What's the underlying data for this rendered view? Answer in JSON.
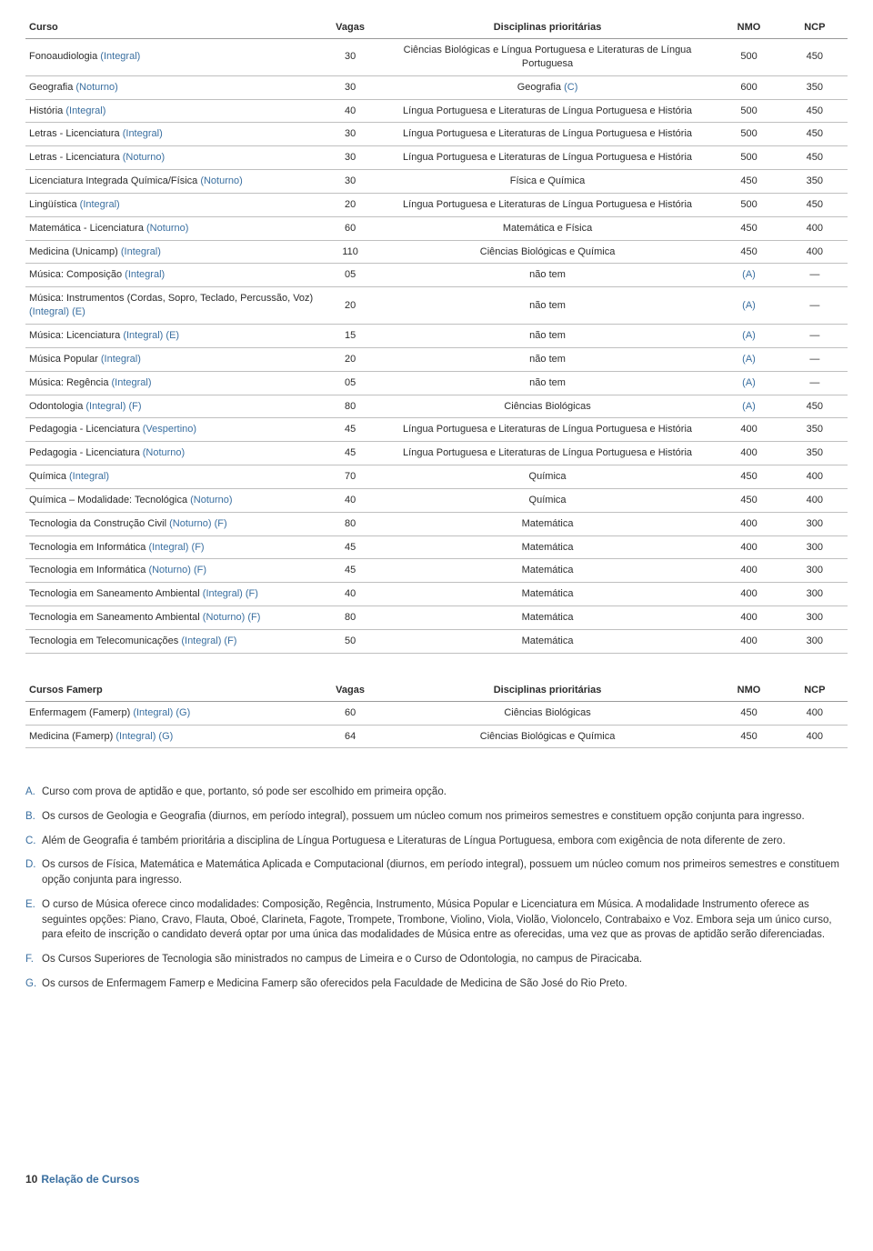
{
  "colors": {
    "modality": "#3a6fa0",
    "text": "#2c2c2c",
    "border": "#bfbfbf",
    "header_border": "#999999"
  },
  "fonts": {
    "body_size_pt": 11,
    "notes_size_pt": 11.5,
    "footer_size_pt": 12
  },
  "table1": {
    "headers": {
      "curso": "Curso",
      "vagas": "Vagas",
      "disc": "Disciplinas prioritárias",
      "nmo": "NMO",
      "ncp": "NCP"
    },
    "col_widths_pct": [
      36,
      7,
      41,
      8,
      8
    ],
    "rows": [
      {
        "curso": "Fonoaudiologia",
        "mod": "(Integral)",
        "vagas": "30",
        "disc": "Ciências Biológicas e Língua Portuguesa e Literaturas de Língua Portuguesa",
        "nmo": "500",
        "ncp": "450"
      },
      {
        "curso": "Geografia",
        "mod": "(Noturno)",
        "vagas": "30",
        "disc": "Geografia",
        "disc_suf": "(C)",
        "nmo": "600",
        "ncp": "350"
      },
      {
        "curso": "História",
        "mod": "(Integral)",
        "vagas": "40",
        "disc": "Língua Portuguesa e Literaturas de Língua Portuguesa e História",
        "nmo": "500",
        "ncp": "450"
      },
      {
        "curso": "Letras - Licenciatura",
        "mod": "(Integral)",
        "vagas": "30",
        "disc": "Língua Portuguesa e Literaturas de Língua Portuguesa e História",
        "nmo": "500",
        "ncp": "450"
      },
      {
        "curso": "Letras - Licenciatura",
        "mod": "(Noturno)",
        "vagas": "30",
        "disc": "Língua Portuguesa e Literaturas de Língua Portuguesa e História",
        "nmo": "500",
        "ncp": "450"
      },
      {
        "curso": "Licenciatura Integrada Química/Física",
        "mod": "(Noturno)",
        "vagas": "30",
        "disc": "Física e Química",
        "nmo": "450",
        "ncp": "350"
      },
      {
        "curso": "Lingüística",
        "mod": "(Integral)",
        "vagas": "20",
        "disc": "Língua Portuguesa e Literaturas de Língua Portuguesa e História",
        "nmo": "500",
        "ncp": "450"
      },
      {
        "curso": "Matemática - Licenciatura",
        "mod": "(Noturno)",
        "vagas": "60",
        "disc": "Matemática e Física",
        "nmo": "450",
        "ncp": "400"
      },
      {
        "curso": "Medicina (Unicamp)",
        "mod": "(Integral)",
        "vagas": "110",
        "disc": "Ciências Biológicas e Química",
        "nmo": "450",
        "ncp": "400"
      },
      {
        "curso": "Música: Composição",
        "mod": "(Integral)",
        "vagas": "05",
        "disc": "não tem",
        "nmo_mod": "(A)",
        "ncp": "—"
      },
      {
        "curso": "Música: Instrumentos (Cordas, Sopro, Teclado, Percussão, Voz)",
        "mod": "(Integral) (E)",
        "vagas": "20",
        "disc": "não tem",
        "nmo_mod": "(A)",
        "ncp": "—"
      },
      {
        "curso": "Música: Licenciatura",
        "mod": "(Integral) (E)",
        "vagas": "15",
        "disc": "não tem",
        "nmo_mod": "(A)",
        "ncp": "—"
      },
      {
        "curso": "Música Popular",
        "mod": "(Integral)",
        "vagas": "20",
        "disc": "não tem",
        "nmo_mod": "(A)",
        "ncp": "—"
      },
      {
        "curso": "Música: Regência",
        "mod": "(Integral)",
        "vagas": "05",
        "disc": "não tem",
        "nmo_mod": "(A)",
        "ncp": "—"
      },
      {
        "curso": "Odontologia",
        "mod": "(Integral) (F)",
        "vagas": "80",
        "disc": "Ciências Biológicas",
        "nmo_mod": "(A)",
        "ncp": "450"
      },
      {
        "curso": "Pedagogia - Licenciatura",
        "mod": "(Vespertino)",
        "vagas": "45",
        "disc": "Língua Portuguesa e Literaturas de Língua Portuguesa e História",
        "nmo": "400",
        "ncp": "350"
      },
      {
        "curso": "Pedagogia - Licenciatura",
        "mod": "(Noturno)",
        "vagas": "45",
        "disc": "Língua Portuguesa e Literaturas de Língua Portuguesa e História",
        "nmo": "400",
        "ncp": "350"
      },
      {
        "curso": "Química",
        "mod": "(Integral)",
        "vagas": "70",
        "disc": "Química",
        "nmo": "450",
        "ncp": "400"
      },
      {
        "curso": "Química – Modalidade: Tecnológica",
        "mod": "(Noturno)",
        "vagas": "40",
        "disc": "Química",
        "nmo": "450",
        "ncp": "400"
      },
      {
        "curso": "Tecnologia da Construção Civil",
        "mod": "(Noturno) (F)",
        "vagas": "80",
        "disc": "Matemática",
        "nmo": "400",
        "ncp": "300"
      },
      {
        "curso": "Tecnologia em Informática",
        "mod": "(Integral) (F)",
        "vagas": "45",
        "disc": "Matemática",
        "nmo": "400",
        "ncp": "300"
      },
      {
        "curso": "Tecnologia em Informática",
        "mod": "(Noturno) (F)",
        "vagas": "45",
        "disc": "Matemática",
        "nmo": "400",
        "ncp": "300"
      },
      {
        "curso": "Tecnologia em Saneamento Ambiental",
        "mod": "(Integral) (F)",
        "vagas": "40",
        "disc": "Matemática",
        "nmo": "400",
        "ncp": "300"
      },
      {
        "curso": "Tecnologia em Saneamento Ambiental",
        "mod": "(Noturno) (F)",
        "vagas": "80",
        "disc": "Matemática",
        "nmo": "400",
        "ncp": "300"
      },
      {
        "curso": "Tecnologia em Telecomunicações",
        "mod": "(Integral) (F)",
        "vagas": "50",
        "disc": "Matemática",
        "nmo": "400",
        "ncp": "300"
      }
    ]
  },
  "table2": {
    "headers": {
      "curso": "Cursos Famerp",
      "vagas": "Vagas",
      "disc": "Disciplinas prioritárias",
      "nmo": "NMO",
      "ncp": "NCP"
    },
    "col_widths_pct": [
      36,
      7,
      41,
      8,
      8
    ],
    "rows": [
      {
        "curso": "Enfermagem (Famerp)",
        "mod": "(Integral) (G)",
        "vagas": "60",
        "disc": "Ciências Biológicas",
        "nmo": "450",
        "ncp": "400"
      },
      {
        "curso": "Medicina (Famerp)",
        "mod": "(Integral) (G)",
        "vagas": "64",
        "disc": "Ciências Biológicas e Química",
        "nmo": "450",
        "ncp": "400"
      }
    ]
  },
  "notes": [
    {
      "letter": "A.",
      "text": "Curso com prova de aptidão e que, portanto, só pode ser escolhido em primeira opção."
    },
    {
      "letter": "B.",
      "text": "Os cursos de Geologia e Geografia (diurnos, em período integral), possuem um núcleo comum nos primeiros semestres e constituem opção conjunta para ingresso."
    },
    {
      "letter": "C.",
      "text": "Além de Geografia é também prioritária a disciplina de Língua Portuguesa e Literaturas de Língua Portuguesa, embora com exigência de nota diferente de zero."
    },
    {
      "letter": "D.",
      "text": "Os cursos de Física, Matemática e Matemática Aplicada e Computacional (diurnos, em período integral), possuem um núcleo comum nos primeiros semestres e constituem opção conjunta para ingresso."
    },
    {
      "letter": "E.",
      "text": "O curso de Música oferece cinco modalidades: Composição, Regência, Instrumento, Música Popular e Licenciatura em Música. A modalidade Instrumento oferece as seguintes opções: Piano, Cravo, Flauta, Oboé, Clarineta, Fagote, Trompete, Trombone, Violino, Viola, Violão, Violoncelo, Contrabaixo e Voz. Embora seja um único curso, para efeito de inscrição o candidato deverá optar por uma única das modalidades de Música entre as oferecidas, uma vez que as provas de aptidão serão diferenciadas."
    },
    {
      "letter": "F.",
      "text": "Os Cursos Superiores de Tecnologia são ministrados no campus de Limeira e o Curso de Odontologia, no campus  de Piracicaba."
    },
    {
      "letter": "G.",
      "text": "Os cursos de Enfermagem Famerp e Medicina Famerp são oferecidos pela Faculdade de Medicina de São José do Rio Preto."
    }
  ],
  "footer": {
    "number": "10",
    "label": "Relação de Cursos"
  }
}
